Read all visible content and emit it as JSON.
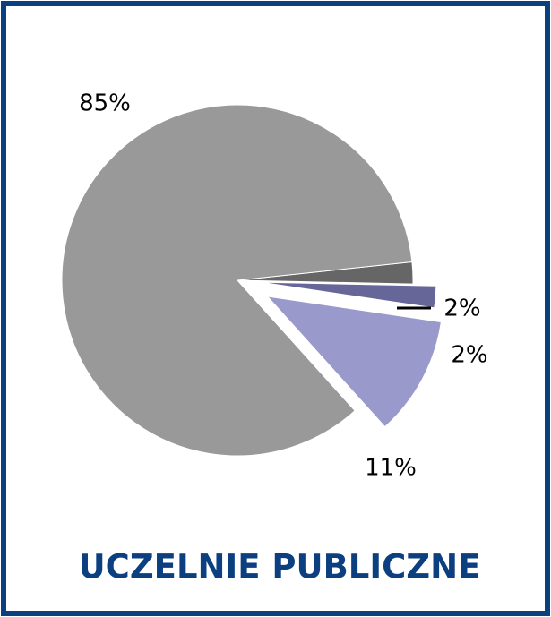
{
  "chart_data": {
    "type": "pie",
    "title": "UCZELNIE PUBLICZNE",
    "values": [
      2,
      2,
      11,
      85
    ],
    "value_labels": [
      "2%",
      "2%",
      "11%",
      "85%"
    ],
    "colors": [
      "#666666",
      "#666699",
      "#9999cc",
      "#999999"
    ]
  }
}
